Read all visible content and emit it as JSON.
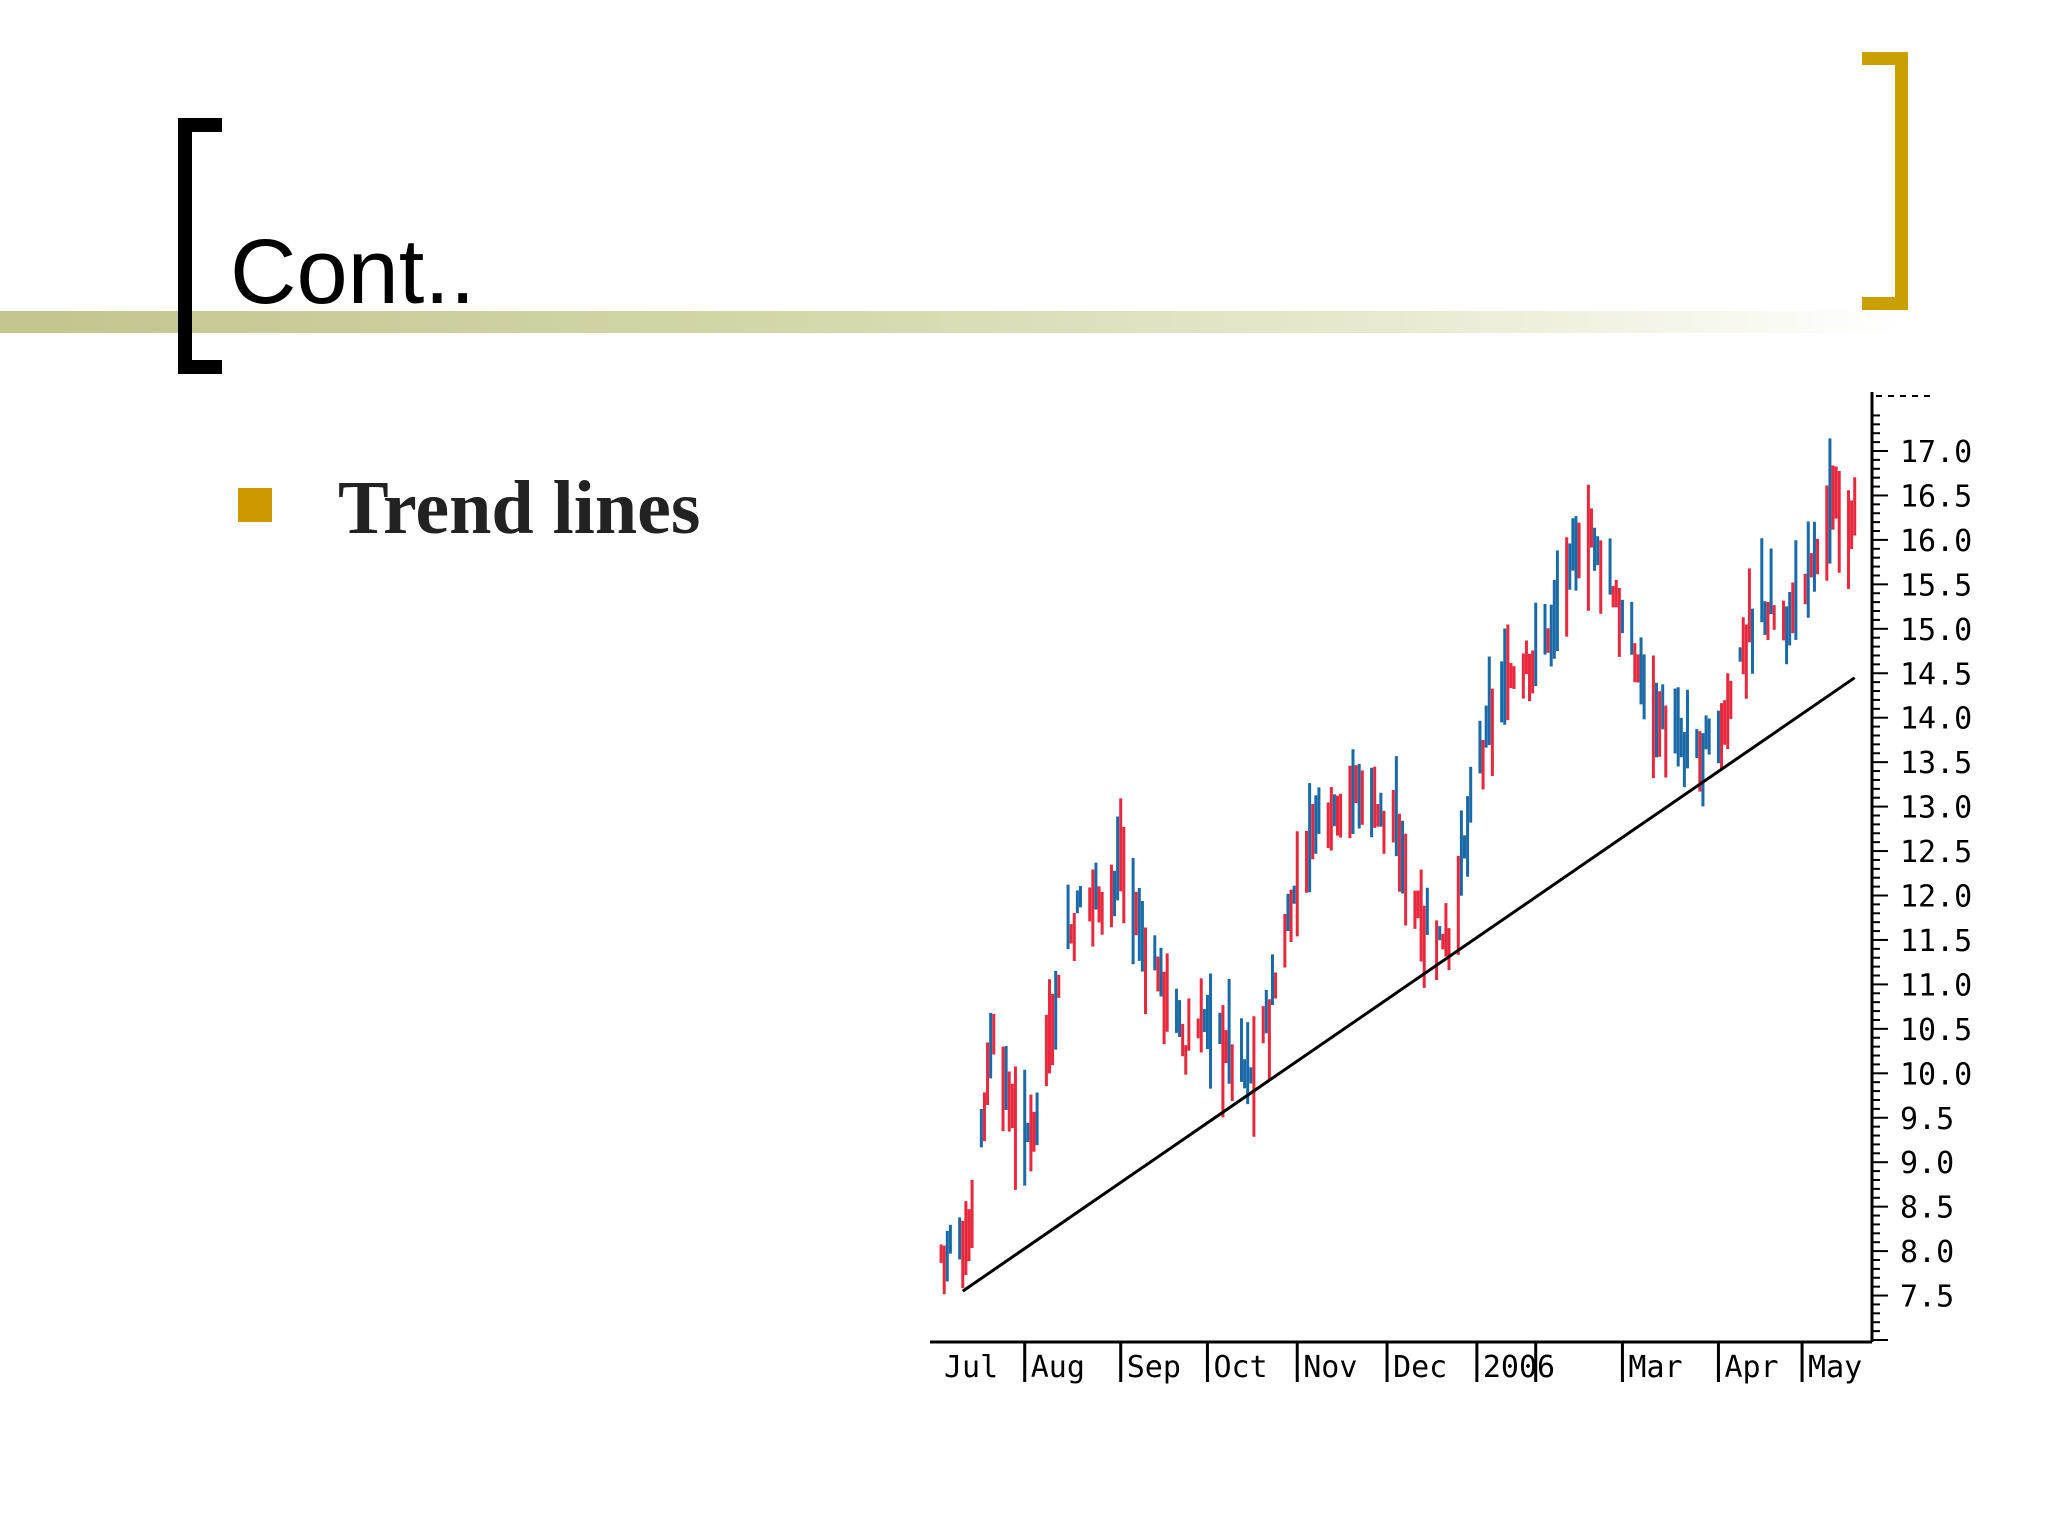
{
  "slide": {
    "title": "Cont..",
    "bullets": [
      "Trend lines"
    ]
  },
  "colors": {
    "left_bracket": "#000000",
    "right_bracket": "#c9a000",
    "bullet": "#cc9900",
    "up_bar": "#1a6aa8",
    "down_bar": "#e8283c",
    "trend_line": "#000000"
  },
  "chart_data": {
    "type": "ohlc",
    "title": "",
    "xlabel": "",
    "ylabel": "",
    "ylim": [
      7.0,
      17.5
    ],
    "y_ticks": [
      "7.5",
      "8.0",
      "8.5",
      "9.0",
      "9.5",
      "10.0",
      "10.5",
      "11.0",
      "11.5",
      "12.0",
      "12.5",
      "13.0",
      "13.5",
      "14.0",
      "14.5",
      "15.0",
      "15.5",
      "16.0",
      "16.5",
      "17.0"
    ],
    "y_axis_position": "right",
    "x_tick_labels": [
      "Jul",
      "Aug",
      "Sep",
      "Oct",
      "Nov",
      "Dec",
      "2006",
      "Mar",
      "Apr",
      "May"
    ],
    "x_tick_positions": [
      0,
      28,
      59,
      87,
      116,
      145,
      174,
      221,
      252,
      279
    ],
    "x_range": [
      0,
      299
    ],
    "grid": false,
    "legend": "none",
    "price_path": [
      [
        0,
        8.0
      ],
      [
        10,
        8.1
      ],
      [
        14,
        9.5
      ],
      [
        18,
        10.5
      ],
      [
        22,
        9.8
      ],
      [
        28,
        9.2
      ],
      [
        33,
        9.8
      ],
      [
        40,
        11.3
      ],
      [
        48,
        12.1
      ],
      [
        55,
        12.0
      ],
      [
        59,
        12.4
      ],
      [
        66,
        11.5
      ],
      [
        73,
        11.0
      ],
      [
        80,
        10.3
      ],
      [
        87,
        10.6
      ],
      [
        94,
        10.3
      ],
      [
        101,
        9.95
      ],
      [
        108,
        10.8
      ],
      [
        115,
        12.0
      ],
      [
        122,
        12.9
      ],
      [
        130,
        13.1
      ],
      [
        138,
        13.2
      ],
      [
        145,
        12.9
      ],
      [
        152,
        12.2
      ],
      [
        159,
        11.5
      ],
      [
        166,
        11.6
      ],
      [
        174,
        13.4
      ],
      [
        181,
        14.2
      ],
      [
        188,
        14.6
      ],
      [
        195,
        14.8
      ],
      [
        202,
        15.4
      ],
      [
        209,
        16.1
      ],
      [
        216,
        15.7
      ],
      [
        223,
        14.8
      ],
      [
        230,
        14.3
      ],
      [
        237,
        13.7
      ],
      [
        244,
        13.6
      ],
      [
        252,
        13.7
      ],
      [
        259,
        14.7
      ],
      [
        266,
        15.3
      ],
      [
        273,
        15.0
      ],
      [
        279,
        15.5
      ],
      [
        288,
        16.3
      ],
      [
        296,
        16.4
      ]
    ],
    "trend_line": {
      "x": [
        8,
        296
      ],
      "y": [
        7.55,
        14.45
      ]
    }
  }
}
